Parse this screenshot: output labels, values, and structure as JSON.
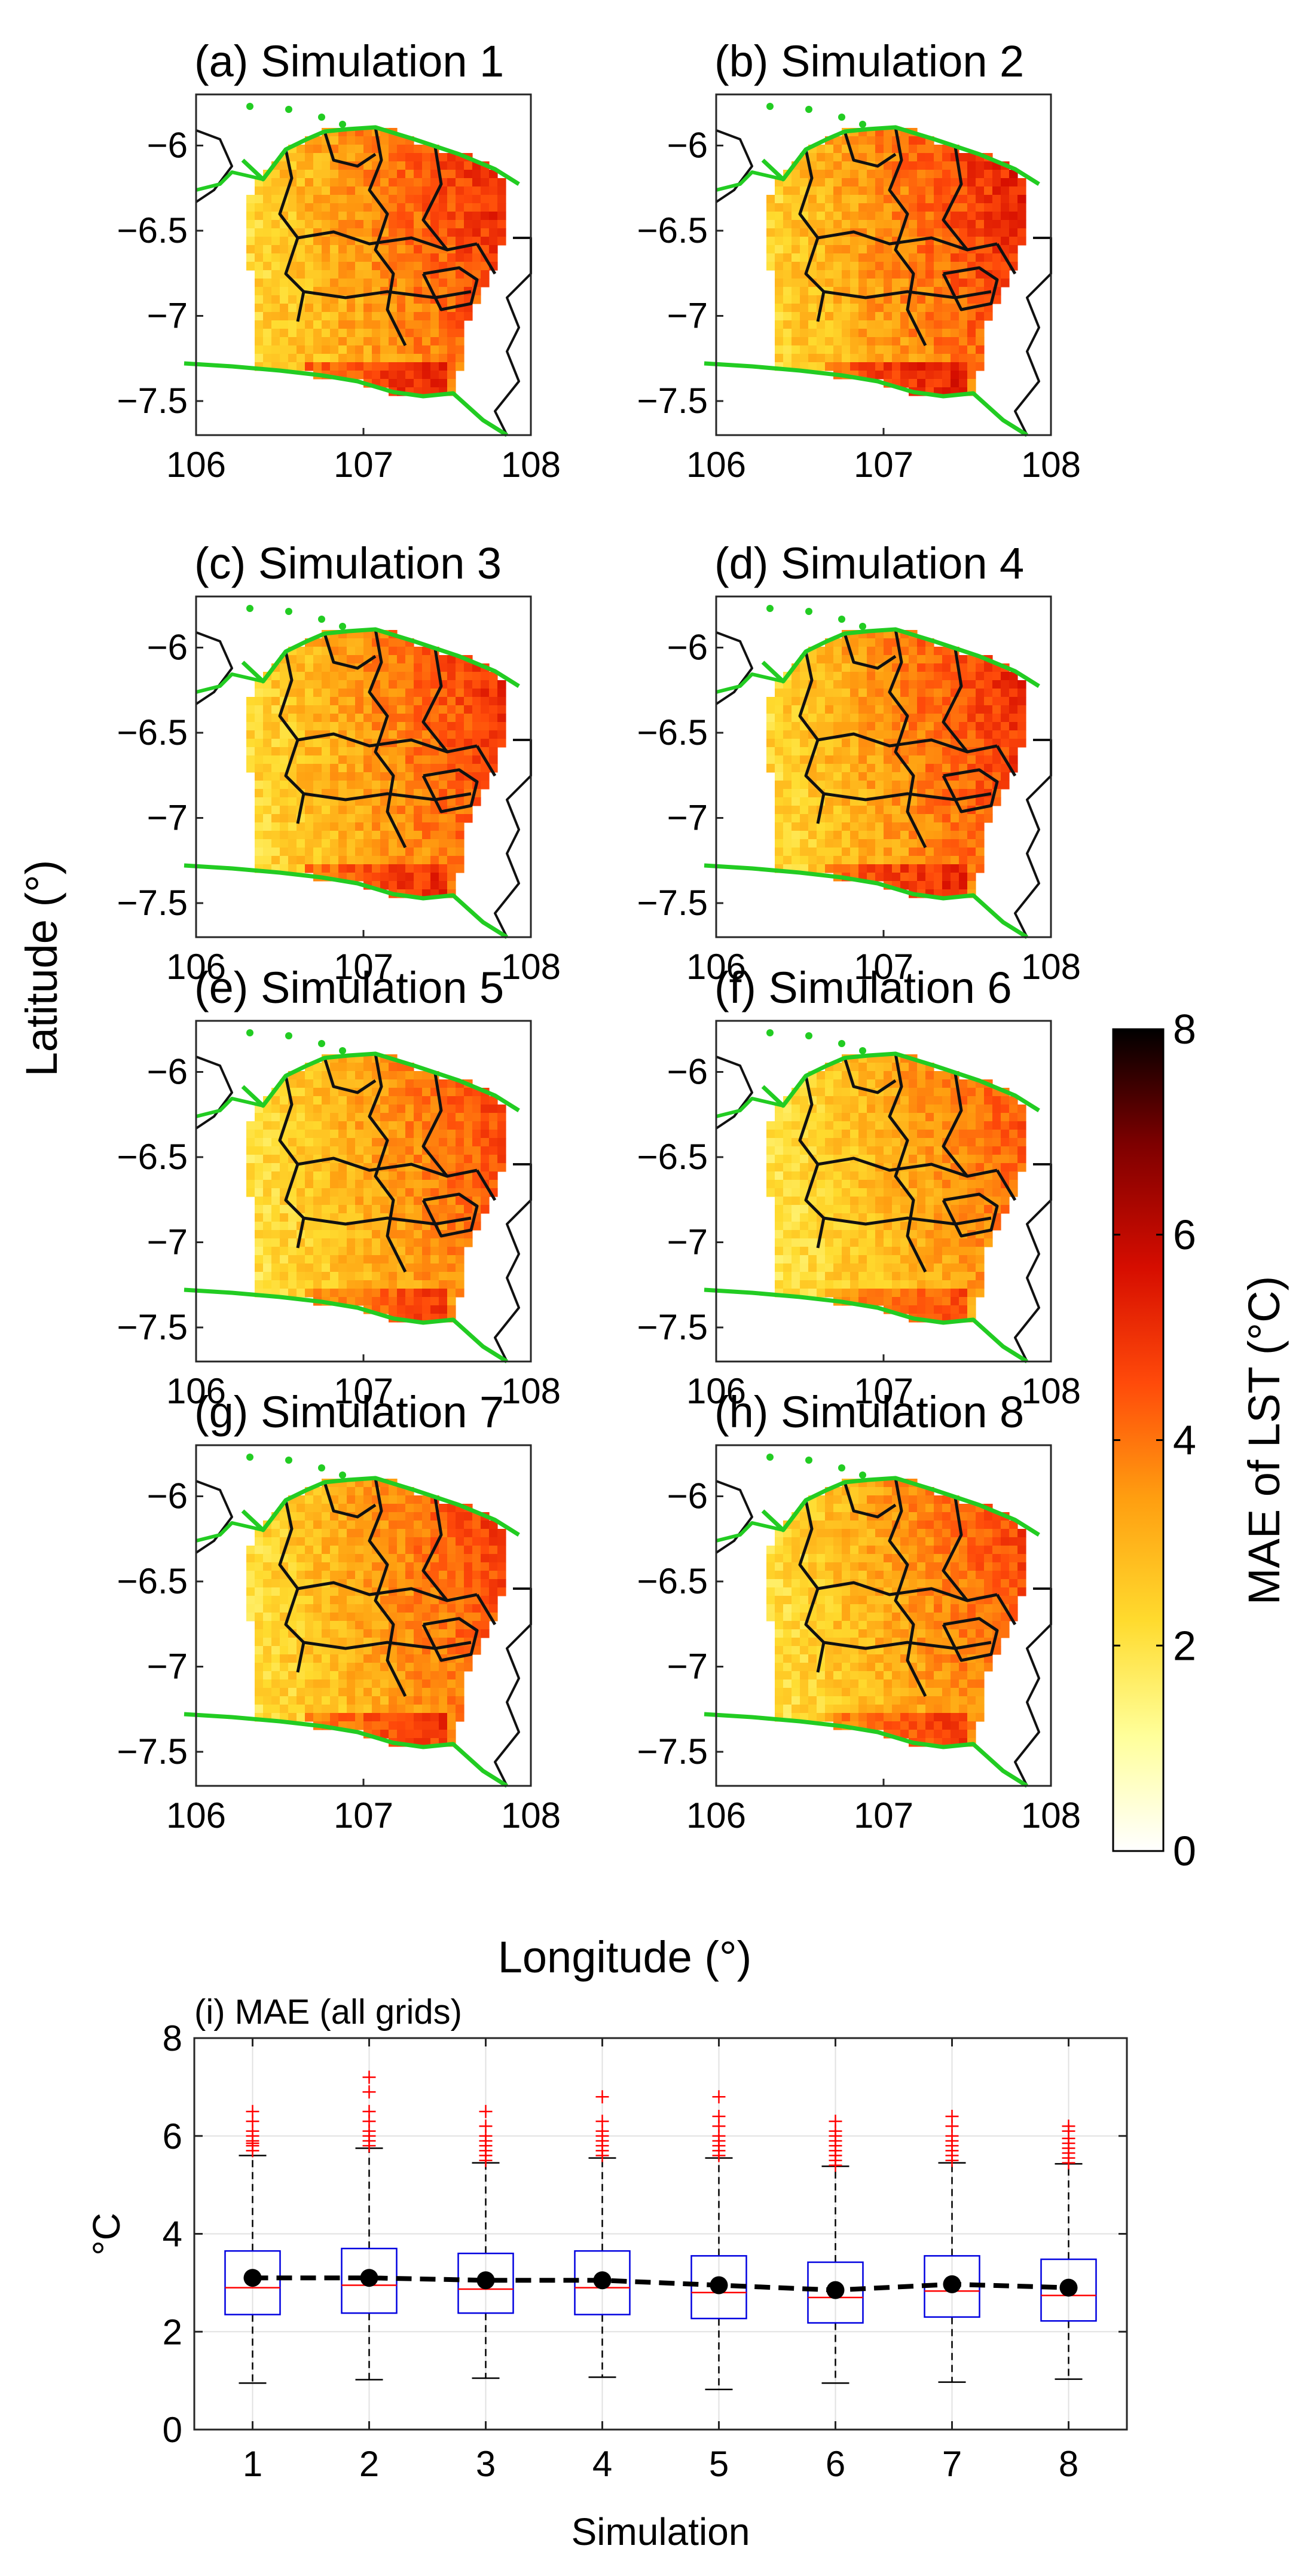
{
  "chart_data": [
    {
      "type": "heatmap",
      "id": "panel-maps",
      "panels": [
        {
          "title": "(a) Simulation 1",
          "intensity": 1.0
        },
        {
          "title": "(b) Simulation 2",
          "intensity": 1.02
        },
        {
          "title": "(c) Simulation 3",
          "intensity": 0.97
        },
        {
          "title": "(d) Simulation 4",
          "intensity": 0.99
        },
        {
          "title": "(e) Simulation 5",
          "intensity": 0.9
        },
        {
          "title": "(f) Simulation 6",
          "intensity": 0.85
        },
        {
          "title": "(g) Simulation 7",
          "intensity": 0.93
        },
        {
          "title": "(h) Simulation 8",
          "intensity": 0.91
        }
      ],
      "xlim": [
        106,
        108
      ],
      "ylim": [
        -7.7,
        -5.7
      ],
      "x_ticks": [
        106,
        107,
        108
      ],
      "x_tick_labels": [
        "106",
        "107",
        "108"
      ],
      "y_ticks": [
        -6,
        -6.5,
        -7,
        -7.5
      ],
      "y_tick_labels": [
        "−6",
        "−6.5",
        "−7",
        "−7.5"
      ],
      "xlabel": "Longitude (°)",
      "ylabel": "Latitude (°)",
      "colorbar": {
        "label": "MAE of LST (°C)",
        "range": [
          0,
          8
        ],
        "ticks": [
          0,
          2,
          4,
          6,
          8
        ],
        "tick_labels": [
          "0",
          "2",
          "4",
          "6",
          "8"
        ],
        "colors": [
          "#ffffff",
          "#ffff9a",
          "#ffdb2e",
          "#ff9e10",
          "#ff4a0a",
          "#d60d00",
          "#7e0000",
          "#000000"
        ]
      }
    },
    {
      "type": "box",
      "id": "panel-i",
      "title": "(i) MAE (all grids)",
      "categories": [
        "1",
        "2",
        "3",
        "4",
        "5",
        "6",
        "7",
        "8"
      ],
      "q1": [
        2.35,
        2.38,
        2.38,
        2.35,
        2.27,
        2.18,
        2.3,
        2.22
      ],
      "median": [
        2.9,
        2.95,
        2.87,
        2.9,
        2.8,
        2.7,
        2.83,
        2.74
      ],
      "q3": [
        3.65,
        3.7,
        3.6,
        3.65,
        3.55,
        3.42,
        3.55,
        3.48
      ],
      "whisker_low": [
        0.95,
        1.02,
        1.05,
        1.07,
        0.82,
        0.95,
        0.97,
        1.03
      ],
      "whisker_high": [
        5.6,
        5.75,
        5.45,
        5.55,
        5.55,
        5.38,
        5.45,
        5.43
      ],
      "mean": [
        3.1,
        3.1,
        3.05,
        3.05,
        2.95,
        2.85,
        2.97,
        2.9
      ],
      "outliers": [
        [
          5.7,
          5.8,
          5.85,
          5.9,
          6.0,
          6.1,
          6.3,
          6.5
        ],
        [
          5.8,
          5.9,
          6.0,
          6.1,
          6.3,
          6.5,
          6.9,
          7.2
        ],
        [
          5.5,
          5.6,
          5.7,
          5.8,
          5.9,
          6.0,
          6.2,
          6.5
        ],
        [
          5.6,
          5.7,
          5.8,
          5.9,
          6.0,
          6.1,
          6.3,
          6.8
        ],
        [
          5.6,
          5.7,
          5.8,
          5.9,
          6.0,
          6.2,
          6.4,
          6.8
        ],
        [
          5.4,
          5.5,
          5.6,
          5.7,
          5.8,
          5.9,
          6.0,
          6.1,
          6.3
        ],
        [
          5.5,
          5.6,
          5.7,
          5.8,
          5.9,
          6.0,
          6.2,
          6.4
        ],
        [
          5.45,
          5.55,
          5.65,
          5.75,
          5.85,
          5.95,
          6.1,
          6.2
        ]
      ],
      "xlabel": "Simulation",
      "ylabel": "°C",
      "ylim": [
        0,
        8
      ],
      "y_ticks": [
        0,
        2,
        4,
        6,
        8
      ],
      "y_tick_labels": [
        "0",
        "2",
        "4",
        "6",
        "8"
      ],
      "grid": true,
      "box_color": "#0000e0",
      "median_color": "#ff0000",
      "outlier_color": "#ff0000",
      "mean_color": "#000000"
    }
  ]
}
